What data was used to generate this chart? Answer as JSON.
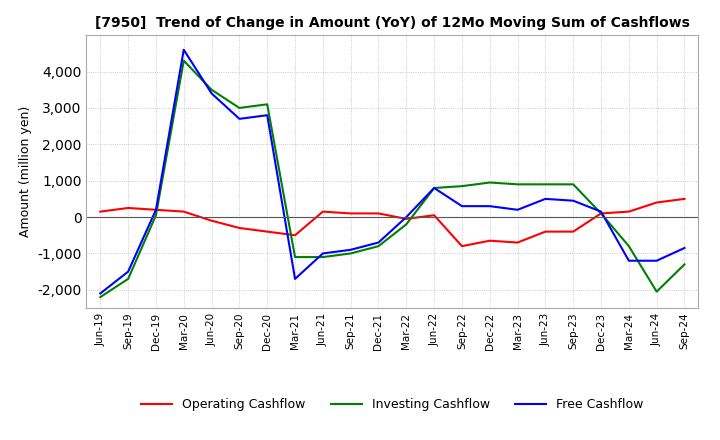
{
  "title": "[7950]  Trend of Change in Amount (YoY) of 12Mo Moving Sum of Cashflows",
  "ylabel": "Amount (million yen)",
  "background_color": "#ffffff",
  "grid_color": "#bbbbbb",
  "x_labels": [
    "Jun-19",
    "Sep-19",
    "Dec-19",
    "Mar-20",
    "Jun-20",
    "Sep-20",
    "Dec-20",
    "Mar-21",
    "Jun-21",
    "Sep-21",
    "Dec-21",
    "Mar-22",
    "Jun-22",
    "Sep-22",
    "Dec-22",
    "Mar-23",
    "Jun-23",
    "Sep-23",
    "Dec-23",
    "Mar-24",
    "Jun-24",
    "Sep-24"
  ],
  "operating": [
    150,
    250,
    200,
    150,
    -100,
    -300,
    -400,
    -500,
    150,
    100,
    100,
    -50,
    50,
    -800,
    -650,
    -700,
    -400,
    -400,
    100,
    150,
    400,
    500
  ],
  "investing": [
    -2200,
    -1700,
    50,
    4300,
    3500,
    3000,
    3100,
    -1100,
    -1100,
    -1000,
    -800,
    -200,
    800,
    850,
    950,
    900,
    900,
    900,
    100,
    -800,
    -2050,
    -1300
  ],
  "free": [
    -2100,
    -1500,
    200,
    4600,
    3400,
    2700,
    2800,
    -1700,
    -1000,
    -900,
    -700,
    0,
    800,
    300,
    300,
    200,
    500,
    450,
    150,
    -1200,
    -1200,
    -850
  ],
  "ylim": [
    -2500,
    5000
  ],
  "yticks": [
    -2000,
    -1000,
    0,
    1000,
    2000,
    3000,
    4000
  ],
  "operating_color": "#ff0000",
  "investing_color": "#008000",
  "free_color": "#0000ff",
  "line_width": 1.5
}
